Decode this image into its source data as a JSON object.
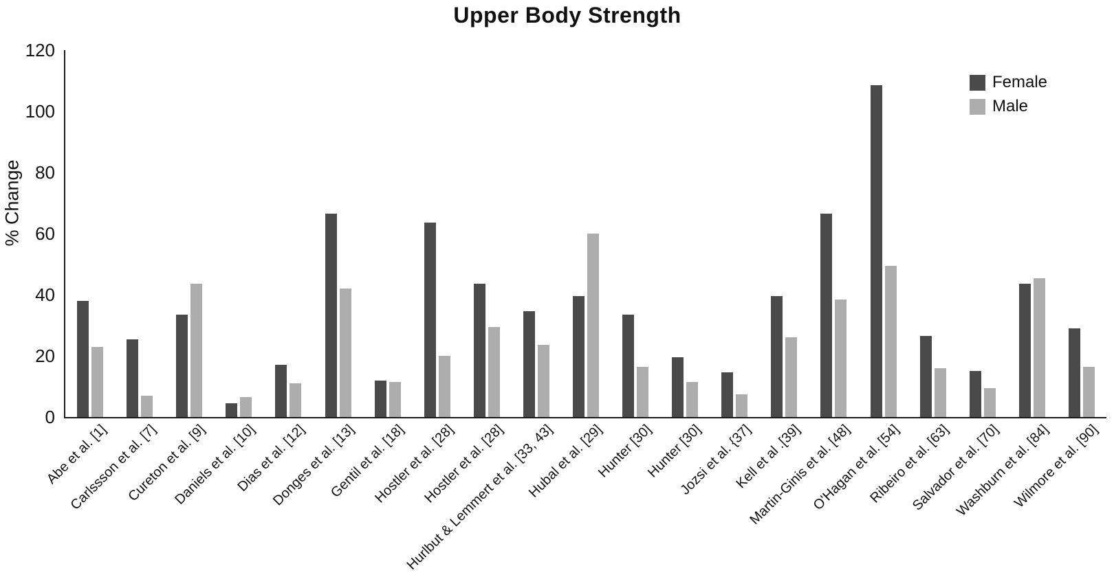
{
  "title": "Upper Body Strength",
  "y_axis_label": "% Change",
  "legend": {
    "items": [
      {
        "label": "Female",
        "color": "#4a4a4a"
      },
      {
        "label": "Male",
        "color": "#adadad"
      }
    ]
  },
  "chart_data": {
    "type": "bar",
    "title": "Upper Body Strength",
    "xlabel": "",
    "ylabel": "% Change",
    "ylim": [
      0,
      120
    ],
    "yticks": [
      0,
      20,
      40,
      60,
      80,
      100,
      120
    ],
    "grid": false,
    "legend_position": "top-right",
    "categories": [
      "Abe et al. [1]",
      "Carlssson et al. [7]",
      "Cureton et al. [9]",
      "Daniels et al. [10]",
      "Dias et al. [12]",
      "Donges et al. [13]",
      "Gentil et al. [18]",
      "Hostler et al. [28]",
      "Hostler et al. [28]",
      "Hurlbut & Lemmert et al. [33, 43]",
      "Hubal et al. [29]",
      "Hunter [30]",
      "Hunter [30]",
      "Jozsi et al. {37]",
      "Kell et al .[39]",
      "Martin-Ginis et al. [48]",
      "O'Hagan et al. [54]",
      "Ribeiro et al. [63]",
      "Salvador et al. [70]",
      "Washburn et al. [84]",
      "Wilmore et al. [90]"
    ],
    "series": [
      {
        "name": "Female",
        "color": "#4a4a4a",
        "values": [
          38,
          25.5,
          33.5,
          4.5,
          17,
          66.5,
          12,
          63.5,
          43.5,
          34.5,
          39.5,
          33.5,
          19.5,
          14.5,
          39.5,
          66.5,
          108.5,
          26.5,
          15,
          43.5,
          29
        ]
      },
      {
        "name": "Male",
        "color": "#adadad",
        "values": [
          23,
          7,
          43.5,
          6.5,
          11,
          42,
          11.5,
          20,
          29.5,
          23.5,
          60,
          16.5,
          11.5,
          7.5,
          26,
          38.5,
          49.5,
          16,
          9.5,
          45.5,
          16.5
        ]
      }
    ]
  }
}
